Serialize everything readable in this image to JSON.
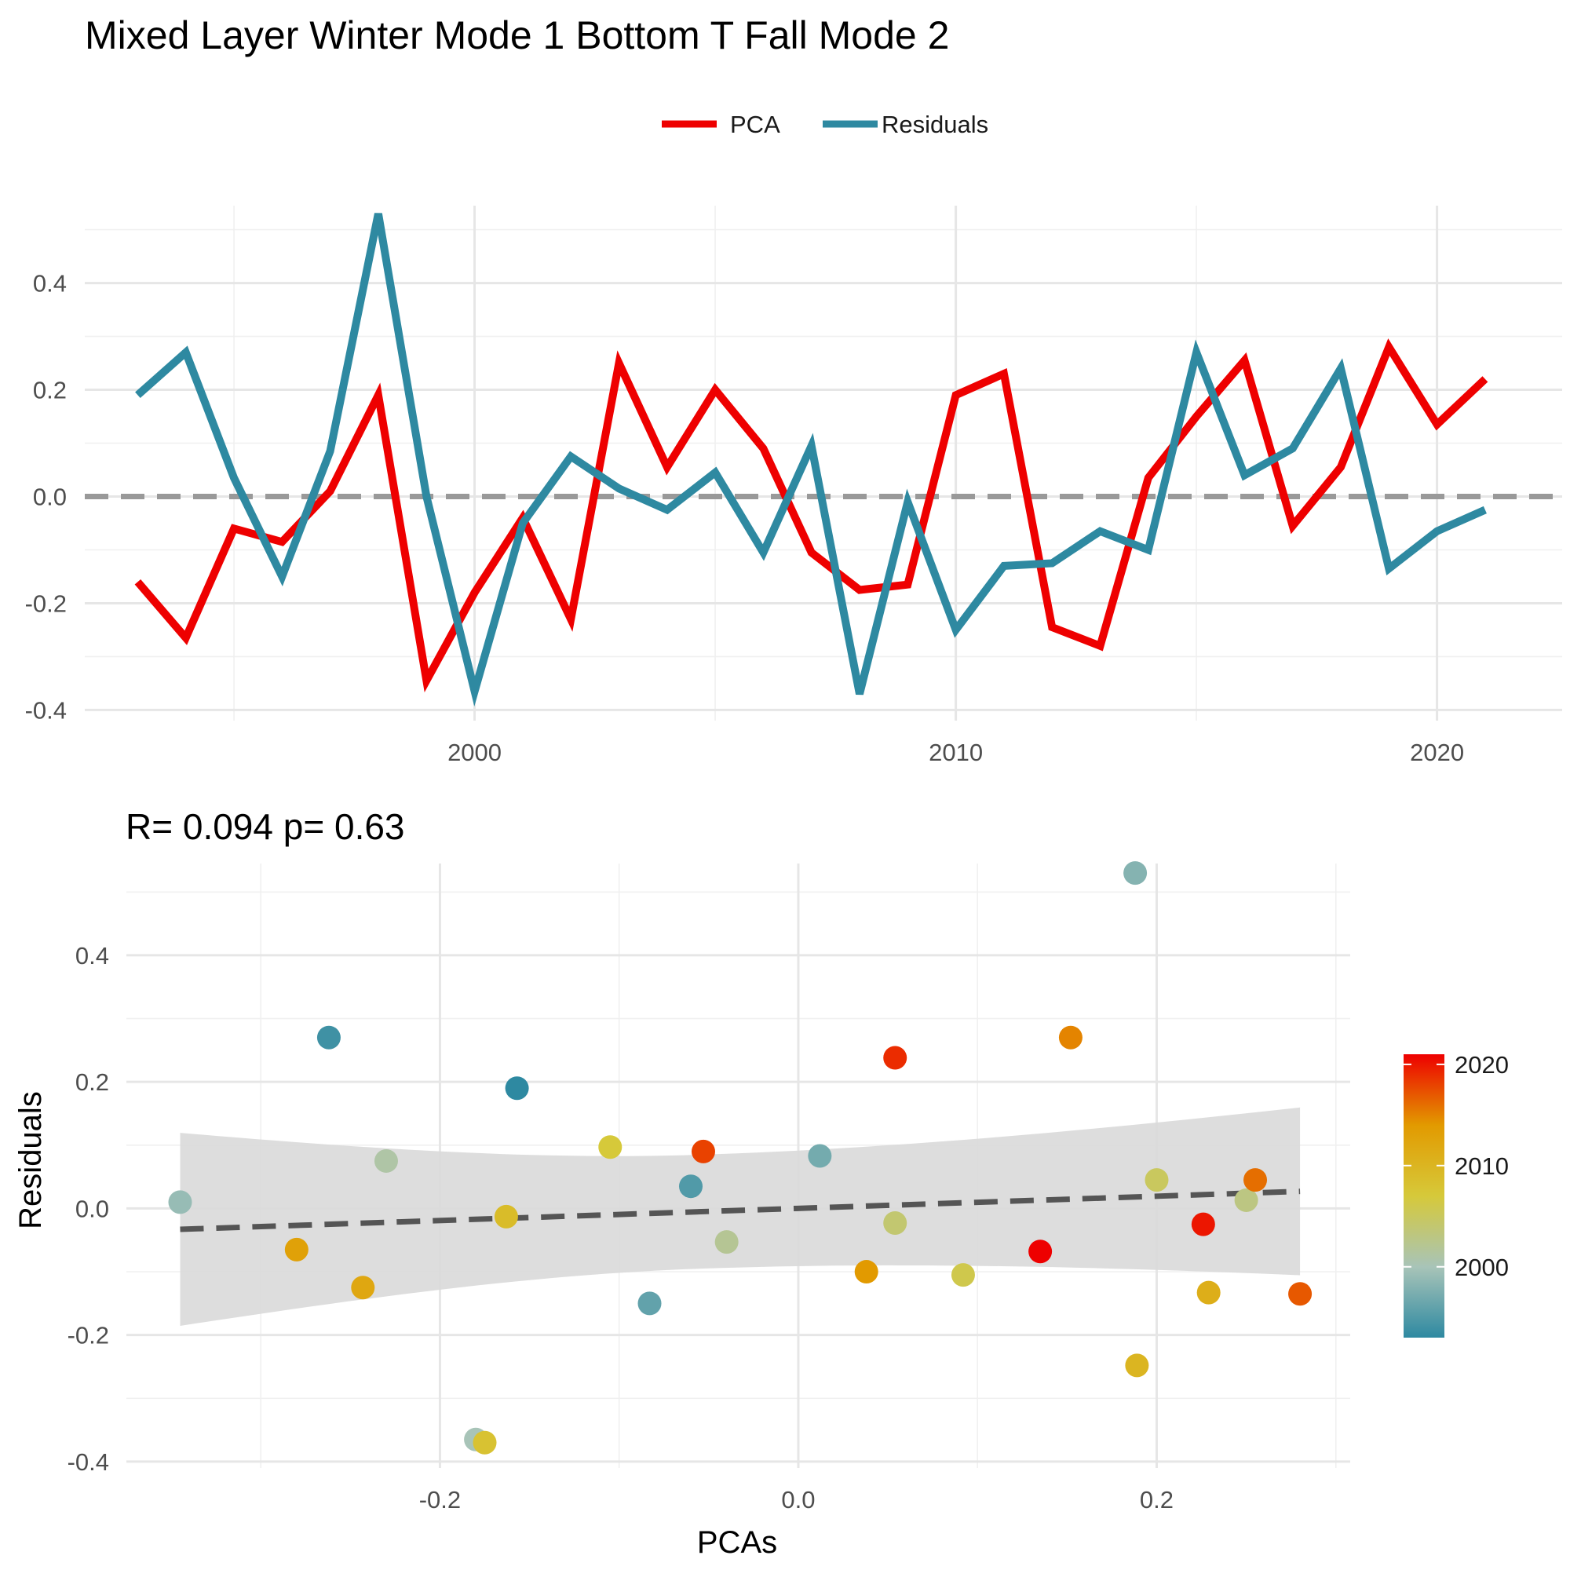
{
  "title": "Mixed Layer Winter Mode 1 Bottom T Fall Mode 2",
  "legend": {
    "items": [
      {
        "label": "PCA",
        "color": "#ee0000"
      },
      {
        "label": "Residuals",
        "color": "#2e89a1"
      }
    ]
  },
  "chart_data": [
    {
      "type": "line",
      "title": "",
      "xlabel": "",
      "ylabel": "",
      "xlim": [
        1991.9,
        2022.6
      ],
      "ylim": [
        -0.42,
        0.545
      ],
      "xticks": [
        2000,
        2010,
        2020
      ],
      "yticks": [
        -0.4,
        -0.2,
        0.0,
        0.2,
        0.4
      ],
      "ytick_labels": [
        "-0.4",
        "-0.2",
        "0.0",
        "0.2",
        "0.4"
      ],
      "grid": true,
      "reference_line": {
        "y": 0,
        "style": "dashed",
        "color": "#999999"
      },
      "x": [
        1993,
        1994,
        1995,
        1996,
        1997,
        1998,
        1999,
        2000,
        2001,
        2002,
        2003,
        2004,
        2005,
        2006,
        2007,
        2008,
        2009,
        2010,
        2011,
        2012,
        2013,
        2014,
        2015,
        2016,
        2017,
        2018,
        2019,
        2020,
        2021
      ],
      "series": [
        {
          "name": "PCA",
          "color": "#ee0000",
          "values": [
            -0.16,
            -0.265,
            -0.06,
            -0.085,
            0.01,
            0.19,
            -0.345,
            -0.18,
            -0.04,
            -0.23,
            0.25,
            0.055,
            0.2,
            0.09,
            -0.105,
            -0.175,
            -0.165,
            0.19,
            0.23,
            -0.245,
            -0.28,
            0.035,
            0.15,
            0.255,
            -0.055,
            0.055,
            0.28,
            0.135,
            0.22
          ]
        },
        {
          "name": "Residuals",
          "color": "#2e89a1",
          "values": [
            0.19,
            0.27,
            0.035,
            -0.15,
            0.085,
            0.53,
            0.0,
            -0.365,
            -0.05,
            0.075,
            0.015,
            -0.025,
            0.045,
            -0.105,
            0.095,
            -0.37,
            -0.01,
            -0.25,
            -0.13,
            -0.125,
            -0.065,
            -0.1,
            0.27,
            0.04,
            0.09,
            0.24,
            -0.135,
            -0.065,
            -0.025
          ]
        }
      ]
    },
    {
      "type": "scatter",
      "title": "R= 0.094  p= 0.63",
      "xlabel": "PCAs",
      "ylabel": "Residuals",
      "xlim": [
        -0.375,
        0.308
      ],
      "ylim": [
        -0.41,
        0.545
      ],
      "xticks": [
        -0.2,
        0.0,
        0.2
      ],
      "xtick_labels": [
        "-0.2",
        "0.0",
        "0.2"
      ],
      "yticks": [
        -0.4,
        -0.2,
        0.0,
        0.2,
        0.4
      ],
      "ytick_labels": [
        "-0.4",
        "-0.2",
        "0.0",
        "0.2",
        "0.4"
      ],
      "grid": true,
      "color_by": "year",
      "points": [
        {
          "x": -0.345,
          "y": 0.01,
          "year": 1999
        },
        {
          "x": -0.28,
          "y": -0.065,
          "year": 2013
        },
        {
          "x": -0.262,
          "y": 0.27,
          "year": 1994
        },
        {
          "x": -0.243,
          "y": -0.125,
          "year": 2012
        },
        {
          "x": -0.23,
          "y": 0.075,
          "year": 2001
        },
        {
          "x": -0.18,
          "y": -0.365,
          "year": 2000
        },
        {
          "x": -0.175,
          "y": -0.37,
          "year": 2008
        },
        {
          "x": -0.163,
          "y": -0.013,
          "year": 2009
        },
        {
          "x": -0.157,
          "y": 0.19,
          "year": 1993
        },
        {
          "x": -0.105,
          "y": 0.097,
          "year": 2007
        },
        {
          "x": -0.083,
          "y": -0.15,
          "year": 1996
        },
        {
          "x": -0.06,
          "y": 0.035,
          "year": 1995
        },
        {
          "x": -0.053,
          "y": 0.09,
          "year": 2018
        },
        {
          "x": -0.04,
          "y": -0.053,
          "year": 2002
        },
        {
          "x": 0.012,
          "y": 0.083,
          "year": 1997
        },
        {
          "x": 0.038,
          "y": -0.1,
          "year": 2014
        },
        {
          "x": 0.054,
          "y": 0.238,
          "year": 2019
        },
        {
          "x": 0.054,
          "y": -0.023,
          "year": 2004
        },
        {
          "x": 0.092,
          "y": -0.105,
          "year": 2006
        },
        {
          "x": 0.135,
          "y": -0.068,
          "year": 2021
        },
        {
          "x": 0.152,
          "y": 0.27,
          "year": 2015
        },
        {
          "x": 0.188,
          "y": 0.53,
          "year": 1998
        },
        {
          "x": 0.189,
          "y": -0.248,
          "year": 2010
        },
        {
          "x": 0.2,
          "y": 0.045,
          "year": 2005
        },
        {
          "x": 0.226,
          "y": -0.025,
          "year": 2020
        },
        {
          "x": 0.229,
          "y": -0.133,
          "year": 2011
        },
        {
          "x": 0.25,
          "y": 0.013,
          "year": 2003
        },
        {
          "x": 0.255,
          "y": 0.045,
          "year": 2016
        },
        {
          "x": 0.28,
          "y": -0.135,
          "year": 2017
        }
      ],
      "fit_line": {
        "x": [
          -0.345,
          0.28
        ],
        "y": [
          -0.033,
          0.027
        ],
        "style": "dashed",
        "color": "#555555"
      },
      "confidence_band": {
        "x": [
          -0.345,
          0.28
        ],
        "upper_at_ends": [
          0.12,
          0.16
        ],
        "lower_at_ends": [
          -0.185,
          -0.105
        ],
        "center_halfwidth": 0.09,
        "color": "#d9d9d9"
      },
      "colorbar": {
        "ticks": [
          2000,
          2010,
          2020
        ],
        "tick_labels": [
          "2000",
          "2010",
          "2020"
        ],
        "range": [
          1993,
          2021
        ],
        "colors": [
          "#2e89a1",
          "#a8c4b8",
          "#d6c93a",
          "#e29a00",
          "#ee0000"
        ]
      }
    }
  ]
}
